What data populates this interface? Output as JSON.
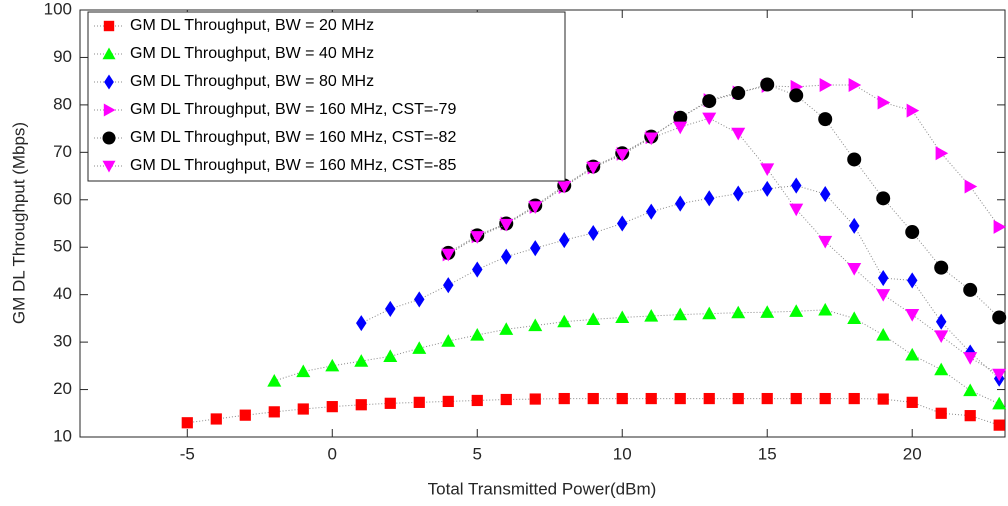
{
  "chart_data": {
    "type": "line",
    "xlabel": "Total Transmitted Power(dBm)",
    "ylabel": "GM DL Throughput (Mbps)",
    "xlim": [
      -8.7,
      23.2
    ],
    "ylim": [
      10,
      100
    ],
    "xticks": [
      -5,
      0,
      5,
      10,
      15,
      20
    ],
    "yticks": [
      10,
      20,
      30,
      40,
      50,
      60,
      70,
      80,
      90,
      100
    ],
    "legend_position": "upper-left",
    "series": [
      {
        "name": "GM DL Throughput, BW = 20 MHz",
        "color": "#ff0000",
        "marker": "square",
        "x": [
          -5,
          -4,
          -3,
          -2,
          -1,
          0,
          1,
          2,
          3,
          4,
          5,
          6,
          7,
          8,
          9,
          10,
          11,
          12,
          13,
          14,
          15,
          16,
          17,
          18,
          19,
          20,
          21,
          22,
          23
        ],
        "values": [
          13,
          13.8,
          14.6,
          15.3,
          15.9,
          16.4,
          16.8,
          17.1,
          17.3,
          17.5,
          17.7,
          17.9,
          18,
          18.1,
          18.1,
          18.1,
          18.1,
          18.1,
          18.1,
          18.1,
          18.1,
          18.1,
          18.1,
          18.1,
          18,
          17.3,
          15,
          14.5,
          12.5
        ]
      },
      {
        "name": "GM DL Throughput, BW = 40 MHz",
        "color": "#00ff00",
        "marker": "triangle-up",
        "x": [
          -2,
          -1,
          0,
          1,
          2,
          3,
          4,
          5,
          6,
          7,
          8,
          9,
          10,
          11,
          12,
          13,
          14,
          15,
          16,
          17,
          18,
          19,
          20,
          21,
          22,
          23
        ],
        "values": [
          21.8,
          23.8,
          25,
          26,
          27,
          28.7,
          30.2,
          31.5,
          32.7,
          33.5,
          34.3,
          34.8,
          35.2,
          35.5,
          35.8,
          36,
          36.2,
          36.3,
          36.5,
          36.8,
          35,
          31.5,
          27.3,
          24.2,
          19.8,
          17
        ]
      },
      {
        "name": "GM DL Throughput, BW = 80 MHz",
        "color": "#0000ff",
        "marker": "diamond",
        "x": [
          1,
          2,
          3,
          4,
          5,
          6,
          7,
          8,
          9,
          10,
          11,
          12,
          13,
          14,
          15,
          16,
          17,
          18,
          19,
          20,
          21,
          22,
          23
        ],
        "values": [
          34,
          37,
          39,
          42,
          45.3,
          48,
          49.8,
          51.5,
          53,
          55,
          57.5,
          59.2,
          60.3,
          61.3,
          62.3,
          63,
          61.2,
          54.5,
          43.5,
          43,
          34.3,
          27.8,
          22.3
        ]
      },
      {
        "name": "GM DL Throughput, BW = 160 MHz, CST=-79",
        "color": "#ff00ff",
        "marker": "triangle-right",
        "x": [
          4,
          5,
          6,
          7,
          8,
          9,
          10,
          11,
          12,
          13,
          14,
          15,
          16,
          17,
          18,
          19,
          20,
          21,
          22,
          23
        ],
        "values": [
          48.5,
          52.3,
          55,
          58.5,
          62.7,
          66.8,
          69.7,
          73.2,
          77.3,
          81,
          82.6,
          84,
          83.8,
          84.2,
          84.2,
          80.5,
          78.8,
          69.8,
          62.8,
          54.3
        ]
      },
      {
        "name": "GM DL Throughput, BW = 160 MHz, CST=-82",
        "color": "#000000",
        "marker": "circle",
        "x": [
          4,
          5,
          6,
          7,
          8,
          9,
          10,
          11,
          12,
          13,
          14,
          15,
          16,
          17,
          18,
          19,
          20,
          21,
          22,
          23
        ],
        "values": [
          48.8,
          52.5,
          55,
          58.8,
          63,
          67,
          69.8,
          73.3,
          77.3,
          80.8,
          82.5,
          84.3,
          82,
          77,
          68.5,
          60.3,
          53.2,
          45.7,
          41,
          35.2
        ]
      },
      {
        "name": "GM DL Throughput, BW = 160 MHz, CST=-85",
        "color": "#ff00ff",
        "marker": "triangle-down",
        "x": [
          4,
          5,
          6,
          7,
          8,
          9,
          10,
          11,
          12,
          13,
          14,
          15,
          16,
          17,
          18,
          19,
          20,
          21,
          22,
          23
        ],
        "values": [
          48.5,
          52.2,
          54.8,
          58.5,
          62.8,
          66.8,
          69.5,
          73,
          75.3,
          77.2,
          74,
          66.5,
          58,
          51.2,
          45.5,
          40,
          35.8,
          31.3,
          26.7,
          23.2
        ]
      }
    ]
  }
}
